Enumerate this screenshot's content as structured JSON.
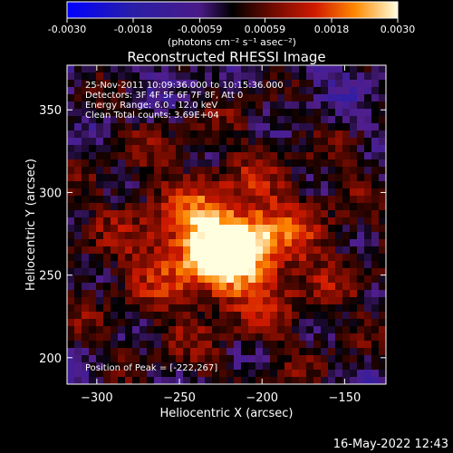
{
  "chart_data": {
    "type": "heatmap",
    "title": "Reconstructed RHESSI Image",
    "xlabel": "Heliocentric X (arcsec)",
    "ylabel": "Heliocentric Y (arcsec)",
    "xlim": [
      -318,
      -125
    ],
    "ylim": [
      184,
      377
    ],
    "x_ticks": [
      -300,
      -250,
      -200,
      -150
    ],
    "y_ticks": [
      200,
      250,
      300,
      350
    ],
    "colorbar": {
      "range": [
        -0.003,
        0.003
      ],
      "ticks": [
        -0.003,
        -0.0018,
        -0.00059,
        0.00059,
        0.0018,
        0.003
      ],
      "tick_labels": [
        "-0.0030",
        "-0.0018",
        "-0.00059",
        "0.00059",
        "0.0018",
        "0.0030"
      ],
      "unit_label": "(photons cm⁻² s⁻¹ asec⁻²)"
    },
    "source_peak": {
      "x": -222,
      "y": 267,
      "value": 0.003
    },
    "annotations": [
      "25-Nov-2011 10:09:36.000 to 10:15:36.000",
      "Detectors: 3F 4F 5F 6F 7F 8F, Att 0",
      "Energy Range: 6.0 - 12.0 keV",
      "Clean     Total counts: 3.69E+04"
    ],
    "peak_label": "Position of Peak = [-222,267]"
  },
  "footer": {
    "date": "16-May-2022 12:43"
  }
}
